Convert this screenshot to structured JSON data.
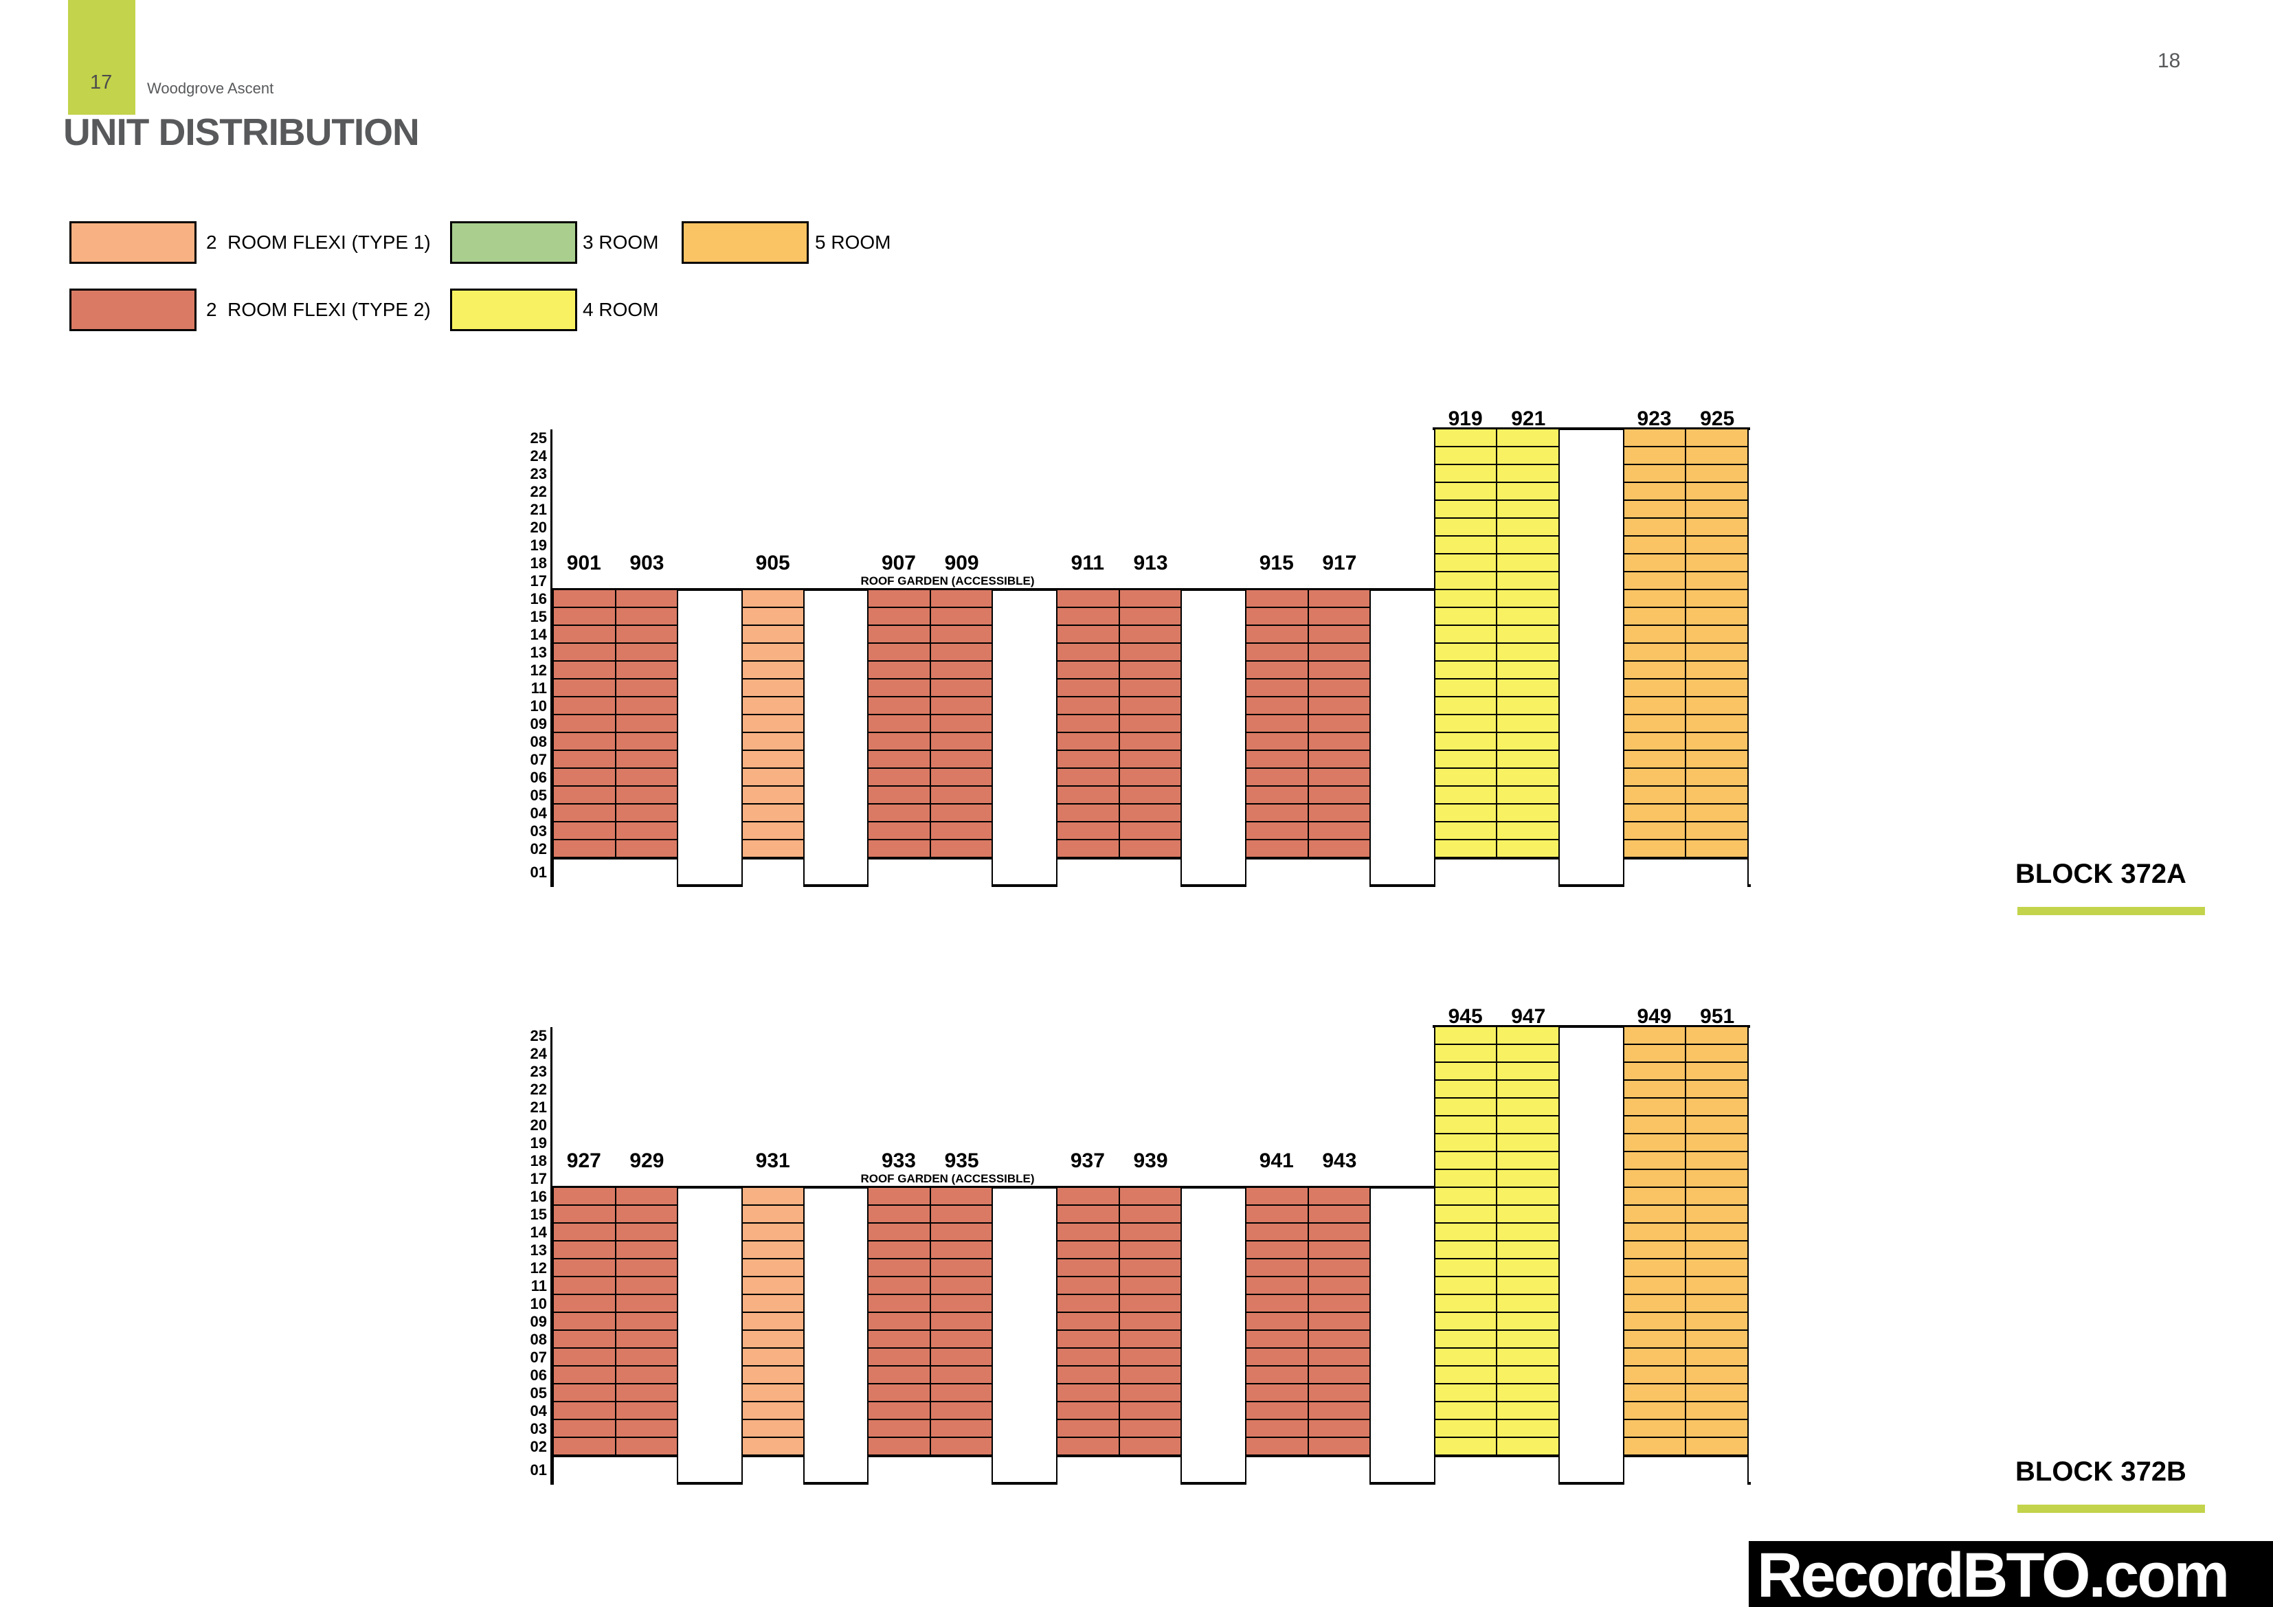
{
  "page": {
    "page_number_left": "17",
    "page_number_right": "18",
    "project_name": "Woodgrove Ascent",
    "title": "UNIT DISTRIBUTION"
  },
  "colors": {
    "accent_green": "#c3d34b",
    "type1": "#f7b183",
    "type2": "#da7a64",
    "room3": "#a9ce8d",
    "room4": "#f8f262",
    "room5": "#fac464",
    "text_gray": "#58595b",
    "line_black": "#000000"
  },
  "legend": [
    {
      "key": "type1",
      "label": "2  ROOM FLEXI (TYPE 1)",
      "row": 0,
      "col": 0
    },
    {
      "key": "type2",
      "label": "2  ROOM FLEXI (TYPE 2)",
      "row": 1,
      "col": 0
    },
    {
      "key": "room3",
      "label": "3 ROOM",
      "row": 0,
      "col": 1
    },
    {
      "key": "room4",
      "label": "4 ROOM",
      "row": 1,
      "col": 1
    },
    {
      "key": "room5",
      "label": "5 ROOM",
      "row": 0,
      "col": 2
    }
  ],
  "diagram_labels": {
    "roof_garden": "ROOF GARDEN (ACCESSIBLE)",
    "floors_top_to_bottom": [
      "25",
      "24",
      "23",
      "22",
      "21",
      "20",
      "19",
      "18",
      "17",
      "16",
      "15",
      "14",
      "13",
      "12",
      "11",
      "10",
      "09",
      "08",
      "07",
      "06",
      "05",
      "04",
      "03",
      "02",
      "01"
    ]
  },
  "chart_data": {
    "type": "unit-distribution-stack-diagram",
    "blocks": [
      {
        "name": "BLOCK 372A",
        "stacks": [
          {
            "units": [
              "901",
              "903"
            ],
            "slot": 0,
            "type": "type2",
            "floor_from": 2,
            "floor_to": 16
          },
          {
            "units": [
              "905"
            ],
            "slot": 3,
            "type": "type1",
            "floor_from": 2,
            "floor_to": 16
          },
          {
            "units": [
              "907",
              "909"
            ],
            "slot": 5,
            "type": "type2",
            "floor_from": 2,
            "floor_to": 16
          },
          {
            "units": [
              "911",
              "913"
            ],
            "slot": 8,
            "type": "type2",
            "floor_from": 2,
            "floor_to": 16
          },
          {
            "units": [
              "915",
              "917"
            ],
            "slot": 11,
            "type": "type2",
            "floor_from": 2,
            "floor_to": 16
          },
          {
            "units": [
              "919",
              "921"
            ],
            "slot": 14,
            "type": "room4",
            "floor_from": 2,
            "floor_to": 25
          },
          {
            "units": [
              "923",
              "925"
            ],
            "slot": 17,
            "type": "room5",
            "floor_from": 2,
            "floor_to": 25
          }
        ]
      },
      {
        "name": "BLOCK 372B",
        "stacks": [
          {
            "units": [
              "927",
              "929"
            ],
            "slot": 0,
            "type": "type2",
            "floor_from": 2,
            "floor_to": 16
          },
          {
            "units": [
              "931"
            ],
            "slot": 3,
            "type": "type1",
            "floor_from": 2,
            "floor_to": 16
          },
          {
            "units": [
              "933",
              "935"
            ],
            "slot": 5,
            "type": "type2",
            "floor_from": 2,
            "floor_to": 16
          },
          {
            "units": [
              "937",
              "939"
            ],
            "slot": 8,
            "type": "type2",
            "floor_from": 2,
            "floor_to": 16
          },
          {
            "units": [
              "941",
              "943"
            ],
            "slot": 11,
            "type": "type2",
            "floor_from": 2,
            "floor_to": 16
          },
          {
            "units": [
              "945",
              "947"
            ],
            "slot": 14,
            "type": "room4",
            "floor_from": 2,
            "floor_to": 25
          },
          {
            "units": [
              "949",
              "951"
            ],
            "slot": 17,
            "type": "room5",
            "floor_from": 2,
            "floor_to": 25
          }
        ]
      }
    ],
    "ground_floor_label": "01",
    "notes": "Floor 01 is an open void deck (white). Low-rise stacks span floors 02-16 topped by an accessible roof garden; high-rise stacks span floors 02-25."
  },
  "watermark": "RecordBTO.com"
}
